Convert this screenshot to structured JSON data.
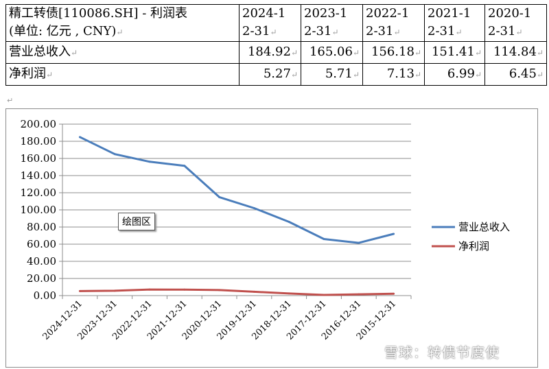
{
  "table": {
    "header_title_line1": "精工转债[110086.SH] - 利润表",
    "header_title_line2": "(单位: 亿元 , CNY)",
    "columns": [
      {
        "line1": "2024-1",
        "line2": "2-31"
      },
      {
        "line1": "2023-1",
        "line2": "2-31"
      },
      {
        "line1": "2022-1",
        "line2": "2-31"
      },
      {
        "line1": "2021-1",
        "line2": "2-31"
      },
      {
        "line1": "2020-1",
        "line2": "2-31"
      }
    ],
    "rows": [
      {
        "label": "营业总收入",
        "values": [
          "184.92",
          "165.06",
          "156.18",
          "151.41",
          "114.84"
        ]
      },
      {
        "label": "净利润",
        "values": [
          "5.27",
          "5.71",
          "7.13",
          "6.99",
          "6.45"
        ]
      }
    ]
  },
  "chart_data": {
    "type": "line",
    "categories": [
      "2024-12-31",
      "2023-12-31",
      "2022-12-31",
      "2021-12-31",
      "2020-12-31",
      "2019-12-31",
      "2018-12-31",
      "2017-12-31",
      "2016-12-31",
      "2015-12-31"
    ],
    "series": [
      {
        "name": "营业总收入",
        "color": "#4a7dbb",
        "values": [
          184.92,
          165.06,
          156.18,
          151.41,
          114.84,
          102.0,
          86.0,
          66.0,
          61.5,
          72.0
        ]
      },
      {
        "name": "净利润",
        "color": "#c0504d",
        "values": [
          5.27,
          5.71,
          7.13,
          6.99,
          6.45,
          4.5,
          2.5,
          0.8,
          1.5,
          2.2
        ]
      }
    ],
    "ylim": [
      0,
      200
    ],
    "yticks": [
      "0.00",
      "20.00",
      "40.00",
      "60.00",
      "80.00",
      "100.00",
      "120.00",
      "140.00",
      "160.00",
      "180.00",
      "200.00"
    ],
    "grid": true,
    "legend_position": "right"
  },
  "tooltip": "绘图区",
  "watermark": "雪球：转债节度使"
}
